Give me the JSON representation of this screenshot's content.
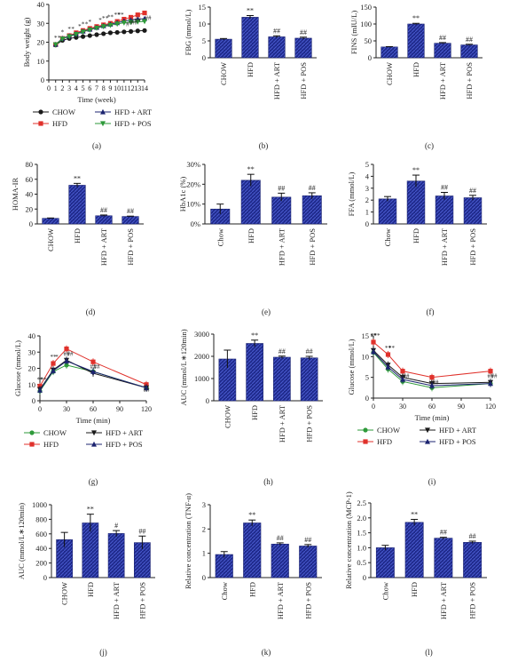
{
  "colors": {
    "bar_fill": "#1f2a8c",
    "bar_hatch": "#4a5bd0",
    "chow": "#1a1a1a",
    "hfd": "#e0312b",
    "art": "#1c2470",
    "pos": "#2e9a3a"
  },
  "chart_data": [
    {
      "panel": "(a)",
      "type": "line",
      "xlabel": "Time (week)",
      "ylabel": "Body weight (g)",
      "xlim": [
        0,
        14
      ],
      "ylim": [
        0,
        40
      ],
      "xticks": [
        "0",
        "1",
        "2",
        "3",
        "4",
        "5",
        "6",
        "7",
        "8",
        "9",
        "10",
        "11",
        "12",
        "13",
        "14"
      ],
      "yticks": [
        "0",
        "10",
        "20",
        "30",
        "40"
      ],
      "x": [
        1,
        2,
        3,
        4,
        5,
        6,
        7,
        8,
        9,
        10,
        11,
        12,
        13,
        14
      ],
      "series": [
        {
          "name": "CHOW",
          "marker": "circle",
          "values": [
            18.5,
            21,
            22,
            22.5,
            23,
            23.5,
            24,
            24.5,
            25,
            25.2,
            25.5,
            25.7,
            26,
            26.2
          ]
        },
        {
          "name": "HFD",
          "marker": "square",
          "values": [
            18.8,
            22,
            23.5,
            25,
            26.2,
            27.3,
            28.3,
            29.2,
            30,
            31,
            32.2,
            33.2,
            34.5,
            35.5
          ]
        },
        {
          "name": "HFD + ART",
          "marker": "triangle",
          "values": [
            18.8,
            22,
            23.3,
            24.5,
            25.8,
            26.8,
            27.8,
            28.7,
            29.5,
            30.3,
            31.2,
            31.8,
            32.2,
            32.5
          ]
        },
        {
          "name": "HFD + POS",
          "marker": "triangle-down",
          "values": [
            18.7,
            21.8,
            23,
            24.2,
            25.5,
            26.5,
            27.5,
            28.3,
            29,
            29.7,
            30.3,
            30.6,
            30.8,
            31
          ]
        }
      ],
      "annotations": [
        "*",
        "*",
        "*",
        "*",
        "*",
        "*",
        "*",
        "*",
        "*",
        "*",
        "*",
        "*",
        "**",
        "**",
        "**",
        "#",
        "#",
        "##",
        "##",
        "##"
      ],
      "legend": [
        "CHOW",
        "HFD",
        "HFD + ART",
        "HFD + POS"
      ]
    },
    {
      "panel": "(b)",
      "type": "bar",
      "ylabel": "FBG (mmol/L)",
      "ylim": [
        0,
        15
      ],
      "yticks": [
        "0",
        "5",
        "10",
        "15"
      ],
      "categories": [
        "CHOW",
        "HFD",
        "HFD + ART",
        "HFD + POS"
      ],
      "values": [
        5.5,
        12,
        6.2,
        5.8
      ],
      "errors": [
        0.2,
        0.5,
        0.3,
        0.3
      ],
      "labels": [
        "",
        "**",
        "##",
        "##"
      ]
    },
    {
      "panel": "(c)",
      "type": "bar",
      "ylabel": "FINS (mIU/L)",
      "ylim": [
        0,
        150
      ],
      "yticks": [
        "0",
        "50",
        "100",
        "150"
      ],
      "categories": [
        "CHOW",
        "HFD",
        "HFD + ART",
        "HFD + POS"
      ],
      "values": [
        32,
        100,
        43,
        38
      ],
      "errors": [
        1,
        2,
        2,
        2
      ],
      "labels": [
        "",
        "**",
        "##",
        "##"
      ]
    },
    {
      "panel": "(d)",
      "type": "bar",
      "ylabel": "HOMA-IR",
      "ylim": [
        0,
        80
      ],
      "yticks": [
        "0",
        "20",
        "40",
        "60",
        "80"
      ],
      "categories": [
        "CHOW",
        "HFD",
        "HFD + ART",
        "HFD + POS"
      ],
      "values": [
        7.5,
        52,
        11,
        10
      ],
      "errors": [
        0.5,
        2.5,
        1,
        0.5
      ],
      "labels": [
        "",
        "**",
        "##",
        "##"
      ]
    },
    {
      "panel": "(e)",
      "type": "bar",
      "ylabel": "HbA1c (%)",
      "ylim": [
        0,
        30
      ],
      "yticks": [
        "0",
        "10",
        "20",
        "30"
      ],
      "yticksuffix": "%",
      "categories": [
        "Chow",
        "HFD",
        "HFD + ART",
        "HFD + POS"
      ],
      "values": [
        7.5,
        22,
        13.5,
        14.2
      ],
      "errors": [
        2.5,
        3,
        2,
        1.5
      ],
      "labels": [
        "",
        "**",
        "##",
        "##"
      ]
    },
    {
      "panel": "(f)",
      "type": "bar",
      "ylabel": "FFA (mmol/L)",
      "ylim": [
        0,
        5
      ],
      "yticks": [
        "0",
        "1",
        "2",
        "3",
        "4",
        "5"
      ],
      "categories": [
        "Chow",
        "HFD",
        "HFD + ART",
        "HFD + POS"
      ],
      "values": [
        2.1,
        3.6,
        2.35,
        2.2
      ],
      "errors": [
        0.2,
        0.5,
        0.3,
        0.2
      ],
      "labels": [
        "",
        "**",
        "##",
        "##"
      ]
    },
    {
      "panel": "(g)",
      "type": "line",
      "xlabel": "Time (min)",
      "ylabel": "Glucose (mmol/L)",
      "xlim": [
        0,
        120
      ],
      "ylim": [
        0,
        40
      ],
      "xticks": [
        "0",
        "30",
        "60",
        "90",
        "120"
      ],
      "yticks": [
        "0",
        "10",
        "20",
        "30",
        "40"
      ],
      "x": [
        0,
        15,
        30,
        60,
        120
      ],
      "series": [
        {
          "name": "CHOW",
          "marker": "circle",
          "values": [
            6,
            18,
            22,
            18,
            8
          ]
        },
        {
          "name": "HFD",
          "marker": "square",
          "values": [
            9,
            23,
            32,
            24,
            10
          ]
        },
        {
          "name": "HFD + ART",
          "marker": "triangle-down",
          "values": [
            7,
            19,
            25,
            17,
            8
          ]
        },
        {
          "name": "HFD + POS",
          "marker": "triangle",
          "values": [
            6.5,
            18.5,
            24.5,
            18,
            8
          ]
        }
      ],
      "annotations": [
        "**",
        "**",
        "**",
        "*",
        "##",
        "##",
        "##",
        "##",
        "##"
      ],
      "legend": [
        "CHOW",
        "HFD",
        "HFD + ART",
        "HFD + POS"
      ]
    },
    {
      "panel": "(h)",
      "type": "bar",
      "ylabel": "AUC (mmol/L∗120min)",
      "ylim": [
        0,
        3000
      ],
      "yticks": [
        "0",
        "1000",
        "2000",
        "3000"
      ],
      "categories": [
        "CHOW",
        "HFD",
        "HFD + ART",
        "HFD + POS"
      ],
      "values": [
        1880,
        2580,
        1960,
        1930
      ],
      "errors": [
        400,
        150,
        50,
        70
      ],
      "labels": [
        "",
        "**",
        "##",
        "##"
      ]
    },
    {
      "panel": "(i)",
      "type": "line",
      "xlabel": "Time (min)",
      "ylabel": "Glucose (mmol/L)",
      "xlim": [
        0,
        120
      ],
      "ylim": [
        0,
        15
      ],
      "xticks": [
        "0",
        "30",
        "60",
        "90",
        "120"
      ],
      "yticks": [
        "0",
        "5",
        "10",
        "15"
      ],
      "x": [
        0,
        15,
        30,
        60,
        120
      ],
      "series": [
        {
          "name": "CHOW",
          "marker": "circle",
          "values": [
            11,
            7,
            4,
            2.5,
            3.5
          ]
        },
        {
          "name": "HFD",
          "marker": "square",
          "values": [
            13.5,
            10.5,
            6.5,
            5,
            6.5
          ]
        },
        {
          "name": "HFD + ART",
          "marker": "triangle-down",
          "values": [
            11.5,
            8,
            5,
            3.5,
            3.8
          ]
        },
        {
          "name": "HFD + POS",
          "marker": "triangle",
          "values": [
            11.2,
            7.5,
            4.5,
            3,
            3.5
          ]
        }
      ],
      "annotations": [
        "**",
        "**",
        "**",
        "**",
        "**",
        "##",
        "##",
        "##",
        "##",
        "##",
        "##"
      ],
      "legend": [
        "CHOW",
        "HFD",
        "HFD + ART",
        "HFD + POS"
      ]
    },
    {
      "panel": "(j)",
      "type": "bar",
      "ylabel": "AUC (mmol/L∗120min)",
      "ylim": [
        0,
        1000
      ],
      "yticks": [
        "0",
        "200",
        "400",
        "600",
        "800",
        "1000"
      ],
      "categories": [
        "CHOW",
        "HFD",
        "HFD + ART",
        "HFD + POS"
      ],
      "values": [
        520,
        750,
        605,
        480
      ],
      "errors": [
        100,
        120,
        40,
        90
      ],
      "labels": [
        "",
        "**",
        "#",
        "##"
      ]
    },
    {
      "panel": "(k)",
      "type": "bar",
      "ylabel": "Relative concentration (TNF-α)",
      "ylim": [
        0,
        3
      ],
      "yticks": [
        "0",
        "1",
        "2",
        "3"
      ],
      "categories": [
        "Chow",
        "HFD",
        "HFD + ART",
        "HFD + POS"
      ],
      "values": [
        0.95,
        2.25,
        1.38,
        1.3
      ],
      "errors": [
        0.12,
        0.12,
        0.05,
        0.06
      ],
      "labels": [
        "",
        "**",
        "##",
        "##"
      ]
    },
    {
      "panel": "(l)",
      "type": "bar",
      "ylabel": "Relative concentration (MCP-1)",
      "ylim": [
        0,
        2.5
      ],
      "yticks": [
        "0",
        "0.5",
        "1.0",
        "1.5",
        "2.0",
        "2.5"
      ],
      "categories": [
        "Chow",
        "HFD",
        "HFD + ART",
        "HFD + POS"
      ],
      "values": [
        1.0,
        1.85,
        1.32,
        1.18
      ],
      "errors": [
        0.08,
        0.1,
        0.03,
        0.04
      ],
      "labels": [
        "",
        "**",
        "##",
        "##"
      ]
    }
  ]
}
